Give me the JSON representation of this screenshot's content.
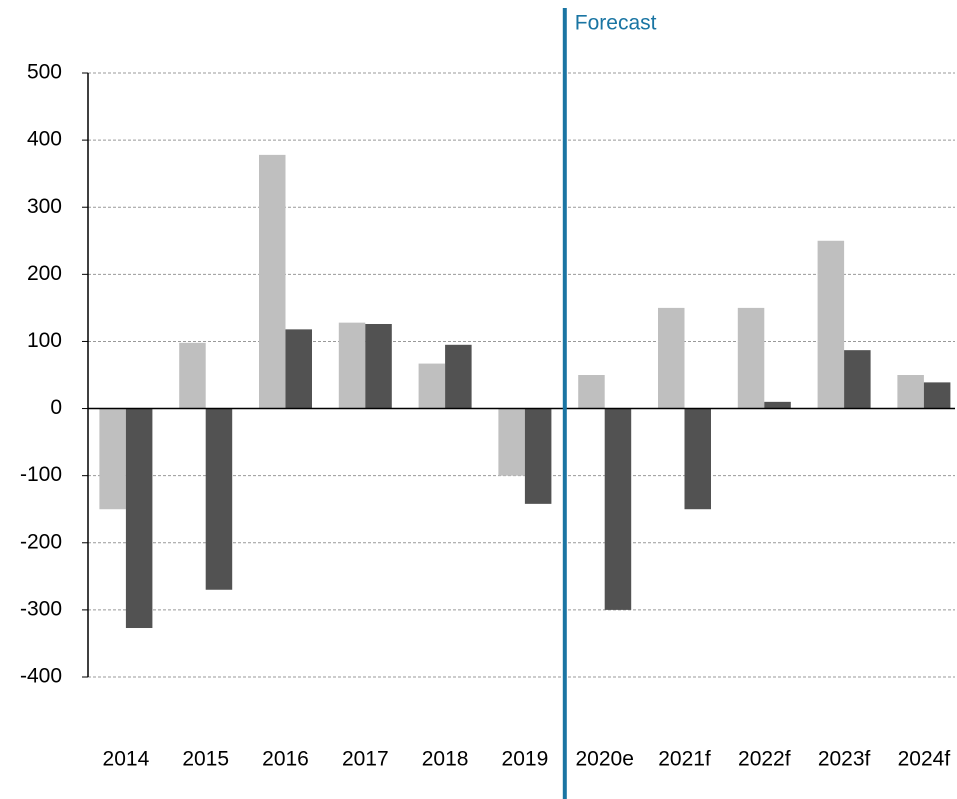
{
  "chart_data": {
    "type": "bar",
    "categories": [
      "2014",
      "2015",
      "2016",
      "2017",
      "2018",
      "2019",
      "2020e",
      "2021f",
      "2022f",
      "2023f",
      "2024f"
    ],
    "series": [
      {
        "color": "#bfbfbf",
        "values": [
          -150,
          98,
          378,
          128,
          67,
          -100,
          50,
          150,
          150,
          250,
          50
        ]
      },
      {
        "color": "#525252",
        "values": [
          -327,
          -270,
          118,
          126,
          95,
          -142,
          -300,
          -150,
          10,
          87,
          39
        ]
      }
    ],
    "ylim": [
      -400,
      500
    ],
    "yticks": [
      -400,
      -300,
      -200,
      -100,
      0,
      100,
      200,
      300,
      400,
      500
    ],
    "grid": true,
    "annotations": [
      {
        "text": "Forecast",
        "at": "2020e",
        "color": "#1a75a3"
      }
    ]
  }
}
